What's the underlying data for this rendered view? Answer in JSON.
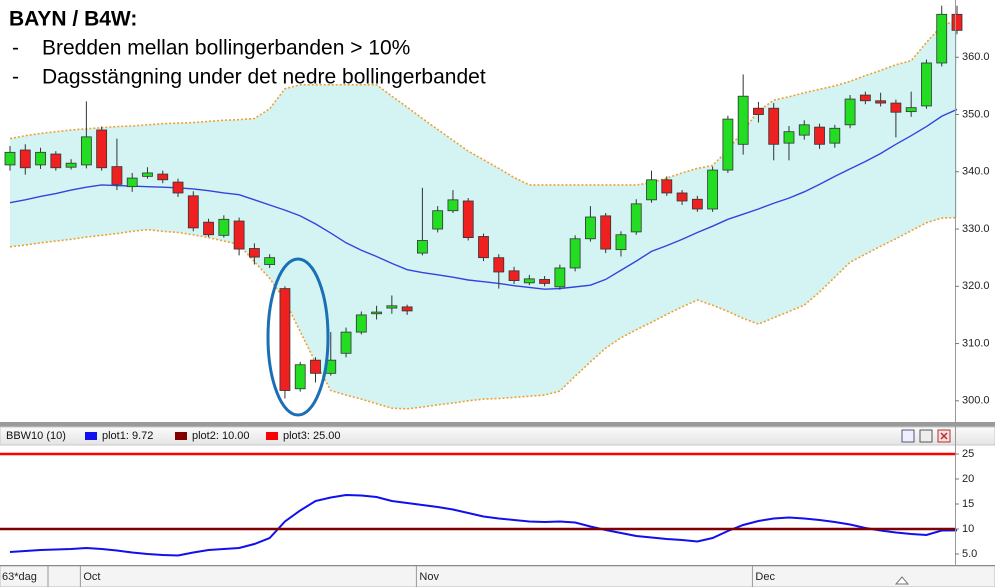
{
  "chart_data": [
    {
      "type": "candlestick",
      "title": "BAYN / B4W:",
      "notes": [
        {
          "bullet": "-",
          "text": "Bredden mellan bollingerbanden > 10%"
        },
        {
          "bullet": "-",
          "text": "Dagsstängning under det nedre bollingerbandet"
        }
      ],
      "period_label": "63*dag",
      "categories": [
        null,
        null,
        null,
        null,
        null,
        "Oct",
        null,
        null,
        null,
        null,
        null,
        null,
        null,
        null,
        null,
        null,
        null,
        null,
        null,
        null,
        null,
        null,
        null,
        null,
        null,
        null,
        null,
        "Nov",
        null,
        null,
        null,
        null,
        null,
        null,
        null,
        null,
        null,
        null,
        null,
        null,
        null,
        null,
        null,
        null,
        null,
        null,
        null,
        null,
        null,
        "Dec",
        null,
        null,
        null,
        null,
        null,
        null,
        null,
        null,
        null,
        null,
        null,
        null,
        null
      ],
      "open": [
        341.2,
        343.8,
        341.2,
        343.1,
        340.8,
        341.2,
        347.3,
        340.9,
        337.4,
        339.2,
        339.6,
        338.2,
        335.8,
        331.2,
        328.9,
        331.4,
        326.6,
        323.8,
        319.6,
        302.1,
        307.1,
        304.8,
        308.3,
        312.0,
        315.2,
        316.2,
        316.4,
        325.8,
        330.0,
        333.2,
        334.9,
        328.7,
        325.0,
        322.7,
        320.6,
        321.2,
        319.9,
        323.2,
        328.3,
        332.3,
        326.4,
        329.5,
        335.1,
        338.6,
        336.3,
        335.2,
        333.5,
        340.3,
        344.8,
        351.1,
        351.1,
        345.0,
        346.4,
        347.8,
        345.0,
        348.2,
        353.4,
        352.4,
        352.0,
        350.5,
        351.5,
        359.0,
        367.5
      ],
      "high": [
        344.5,
        344.8,
        344.2,
        343.6,
        342.2,
        352.3,
        347.9,
        345.8,
        339.8,
        340.8,
        340.2,
        338.8,
        336.6,
        331.8,
        332.4,
        332.0,
        327.5,
        325.6,
        320.0,
        306.8,
        307.6,
        312.0,
        312.8,
        315.6,
        316.6,
        318.4,
        316.8,
        337.2,
        334.0,
        336.8,
        335.4,
        329.2,
        325.6,
        323.4,
        322.0,
        321.8,
        323.8,
        328.9,
        334.0,
        332.8,
        329.6,
        335.2,
        340.2,
        339.2,
        336.8,
        335.8,
        340.9,
        349.8,
        357.0,
        352.2,
        352.0,
        348.0,
        349.0,
        348.4,
        348.2,
        353.4,
        354.0,
        353.8,
        352.6,
        354.0,
        359.6,
        369.0,
        369.0
      ],
      "low": [
        340.2,
        339.5,
        340.5,
        340.2,
        340.4,
        340.6,
        340.2,
        336.8,
        336.5,
        338.8,
        338.0,
        335.6,
        329.6,
        328.6,
        328.5,
        325.4,
        323.8,
        323.2,
        300.4,
        301.6,
        303.2,
        304.4,
        307.6,
        311.6,
        314.2,
        315.2,
        315.0,
        325.4,
        329.4,
        332.8,
        328.0,
        324.4,
        319.6,
        320.4,
        320.2,
        320.0,
        319.4,
        322.6,
        327.8,
        325.8,
        325.2,
        329.0,
        334.6,
        335.8,
        334.2,
        333.0,
        333.0,
        339.8,
        343.0,
        348.6,
        342.0,
        342.0,
        345.6,
        344.0,
        344.2,
        347.6,
        351.8,
        351.4,
        346.0,
        349.6,
        351.0,
        358.4,
        364.0
      ],
      "close": [
        343.4,
        340.7,
        343.4,
        340.7,
        341.5,
        346.1,
        340.7,
        337.8,
        338.9,
        339.8,
        338.6,
        336.3,
        330.2,
        329.0,
        331.7,
        326.5,
        325.1,
        325.0,
        301.8,
        306.3,
        304.8,
        307.1,
        312.0,
        315.0,
        315.5,
        316.6,
        315.7,
        328.0,
        333.2,
        335.1,
        328.5,
        325.0,
        322.5,
        321.0,
        321.3,
        320.5,
        323.2,
        328.3,
        332.1,
        326.5,
        329.0,
        334.4,
        338.6,
        336.3,
        334.9,
        333.5,
        340.3,
        349.2,
        353.2,
        350.0,
        344.8,
        347.0,
        348.2,
        344.8,
        347.6,
        352.7,
        352.4,
        352.0,
        350.4,
        351.2,
        359.0,
        367.5,
        364.7
      ],
      "up_color": "#22dd22",
      "down_color": "#ee2020",
      "band_fill": "#d4f4f4",
      "overlays": [
        {
          "color": "#f0a030",
          "style": "dotted",
          "values": [
            345.8,
            346.3,
            346.7,
            347.0,
            347.3,
            347.5,
            347.7,
            347.9,
            348.0,
            348.2,
            348.4,
            348.5,
            348.6,
            348.8,
            349.0,
            349.1,
            349.3,
            351.0,
            354.5,
            355.2,
            355.2,
            355.2,
            355.2,
            355.2,
            355.2,
            353.2,
            351.3,
            349.3,
            347.4,
            345.5,
            343.6,
            342.1,
            340.6,
            339.0,
            337.7,
            337.7,
            337.7,
            337.7,
            337.7,
            337.7,
            337.7,
            337.7,
            338.1,
            338.9,
            339.8,
            340.6,
            341.1,
            343.8,
            347.2,
            350.6,
            352.5,
            353.1,
            353.8,
            354.4,
            355.0,
            355.8,
            356.8,
            357.7,
            358.7,
            359.4,
            362.6,
            365.5,
            366.5
          ]
        },
        {
          "color": "#3344dd",
          "style": "solid",
          "values": [
            334.6,
            335.1,
            335.7,
            336.2,
            336.8,
            337.3,
            337.7,
            337.6,
            337.5,
            337.4,
            337.3,
            337.2,
            337.0,
            336.7,
            336.3,
            336.0,
            335.1,
            334.2,
            333.3,
            332.3,
            330.9,
            329.3,
            327.6,
            326.3,
            325.2,
            324.0,
            322.9,
            322.4,
            322.0,
            321.6,
            321.1,
            320.8,
            320.5,
            320.1,
            319.8,
            319.5,
            319.6,
            319.9,
            320.2,
            321.2,
            322.8,
            324.4,
            326.1,
            327.1,
            328.2,
            329.4,
            330.5,
            331.7,
            332.6,
            333.5,
            334.5,
            335.4,
            336.5,
            337.8,
            339.2,
            340.5,
            341.8,
            343.2,
            344.8,
            346.3,
            347.9,
            349.7,
            350.9
          ]
        },
        {
          "color": "#f0a030",
          "style": "dotted",
          "values": [
            326.9,
            327.2,
            327.6,
            327.9,
            328.2,
            328.6,
            328.9,
            329.2,
            329.6,
            329.9,
            329.6,
            329.4,
            329.0,
            328.5,
            327.9,
            327.3,
            324.3,
            321.4,
            317.5,
            312.1,
            306.7,
            301.8,
            301.0,
            300.3,
            299.5,
            298.7,
            298.6,
            298.9,
            299.3,
            299.6,
            300.0,
            300.3,
            300.4,
            300.6,
            300.8,
            301.0,
            301.7,
            304.3,
            306.8,
            309.2,
            311.0,
            312.4,
            313.7,
            315.1,
            316.4,
            317.6,
            316.7,
            315.6,
            314.4,
            313.4,
            314.5,
            315.6,
            316.7,
            319.0,
            321.6,
            324.2,
            325.6,
            327.0,
            328.3,
            329.7,
            331.1,
            331.9,
            332.0
          ]
        }
      ],
      "ylim": [
        296.3,
        370
      ],
      "yticks": [
        {
          "value": 300,
          "label": "300.0"
        },
        {
          "value": 310,
          "label": "310.0"
        },
        {
          "value": 320,
          "label": "320.0"
        },
        {
          "value": 330,
          "label": "330.0"
        },
        {
          "value": 340,
          "label": "340.0"
        },
        {
          "value": 350,
          "label": "350.0"
        },
        {
          "value": 360,
          "label": "360.0"
        }
      ],
      "highlight_color": "#1a6fb5"
    },
    {
      "type": "line",
      "title": "BBW10 (10)",
      "series": [
        {
          "name": "plot1: 9.72",
          "color": "#1010ee",
          "values": [
            5.4,
            5.6,
            5.8,
            5.9,
            6.0,
            6.2,
            6.0,
            5.7,
            5.3,
            5.0,
            4.8,
            4.7,
            5.3,
            5.8,
            6.0,
            6.2,
            7.0,
            8.2,
            11.5,
            13.7,
            15.6,
            16.3,
            16.8,
            16.7,
            16.4,
            15.6,
            15.2,
            14.8,
            14.4,
            13.9,
            13.2,
            12.5,
            12.1,
            11.8,
            11.5,
            11.4,
            11.5,
            11.3,
            10.5,
            9.8,
            9.2,
            8.6,
            8.3,
            8.0,
            7.8,
            7.5,
            8.2,
            9.6,
            10.8,
            11.6,
            12.1,
            12.3,
            12.1,
            11.8,
            11.4,
            10.9,
            10.2,
            9.7,
            9.3,
            9.0,
            8.8,
            9.7,
            9.72
          ]
        },
        {
          "name": "plot2: 10.00",
          "color": "#800000",
          "level": 10
        },
        {
          "name": "plot3: 25.00",
          "color": "#ff0000",
          "level": 25
        }
      ],
      "ylim": [
        2.8,
        26.6
      ],
      "yticks": [
        {
          "value": 5,
          "label": "5.0"
        },
        10,
        15,
        20,
        25
      ]
    }
  ]
}
